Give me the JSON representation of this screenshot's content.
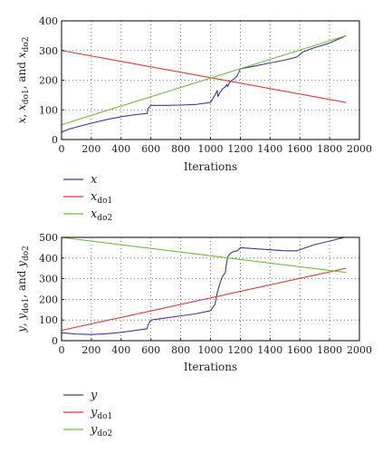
{
  "chart_data": [
    {
      "type": "line",
      "xlabel": "Iterations",
      "ylabel": "x, x_do1, and x_do2",
      "xlim": [
        0,
        2000
      ],
      "ylim": [
        0,
        400
      ],
      "xticks": [
        0,
        200,
        400,
        600,
        800,
        1000,
        1200,
        1400,
        1600,
        1800,
        2000
      ],
      "yticks": [
        0,
        100,
        200,
        300,
        400
      ],
      "grid": true,
      "legend_position": "below",
      "series": [
        {
          "name": "x",
          "sub": "",
          "color": "#3a3a9e",
          "points": [
            [
              0,
              25
            ],
            [
              50,
              35
            ],
            [
              100,
              42
            ],
            [
              200,
              55
            ],
            [
              300,
              67
            ],
            [
              400,
              77
            ],
            [
              500,
              84
            ],
            [
              575,
              88
            ],
            [
              580,
              105
            ],
            [
              600,
              115
            ],
            [
              700,
              115
            ],
            [
              800,
              116
            ],
            [
              900,
              118
            ],
            [
              1000,
              125
            ],
            [
              1030,
              150
            ],
            [
              1045,
              165
            ],
            [
              1050,
              145
            ],
            [
              1060,
              155
            ],
            [
              1080,
              170
            ],
            [
              1100,
              178
            ],
            [
              1110,
              185
            ],
            [
              1115,
              178
            ],
            [
              1125,
              190
            ],
            [
              1140,
              198
            ],
            [
              1160,
              205
            ],
            [
              1180,
              215
            ],
            [
              1200,
              238
            ],
            [
              1300,
              248
            ],
            [
              1400,
              258
            ],
            [
              1500,
              268
            ],
            [
              1580,
              278
            ],
            [
              1620,
              295
            ],
            [
              1700,
              310
            ],
            [
              1800,
              325
            ],
            [
              1910,
              350
            ]
          ]
        },
        {
          "name": "x",
          "sub": "do1",
          "color": "#e8382c",
          "points": [
            [
              0,
              300
            ],
            [
              1910,
              125
            ]
          ]
        },
        {
          "name": "x",
          "sub": "do2",
          "color": "#6cbf3a",
          "points": [
            [
              0,
              50
            ],
            [
              1910,
              350
            ]
          ]
        }
      ]
    },
    {
      "type": "line",
      "xlabel": "Iterations",
      "ylabel": "y, y_do1, and y_do2",
      "xlim": [
        0,
        2000
      ],
      "ylim": [
        0,
        500
      ],
      "xticks": [
        0,
        200,
        400,
        600,
        800,
        1000,
        1200,
        1400,
        1600,
        1800,
        2000
      ],
      "yticks": [
        0,
        100,
        200,
        300,
        400,
        500
      ],
      "grid": true,
      "legend_position": "below",
      "series": [
        {
          "name": "y",
          "sub": "",
          "color": "#3a3a9e",
          "points": [
            [
              0,
              38
            ],
            [
              100,
              32
            ],
            [
              200,
              30
            ],
            [
              300,
              33
            ],
            [
              400,
              40
            ],
            [
              500,
              50
            ],
            [
              575,
              58
            ],
            [
              580,
              75
            ],
            [
              600,
              100
            ],
            [
              700,
              110
            ],
            [
              800,
              120
            ],
            [
              900,
              130
            ],
            [
              1000,
              145
            ],
            [
              1030,
              175
            ],
            [
              1045,
              230
            ],
            [
              1060,
              270
            ],
            [
              1080,
              310
            ],
            [
              1090,
              320
            ],
            [
              1100,
              330
            ],
            [
              1105,
              360
            ],
            [
              1115,
              405
            ],
            [
              1130,
              420
            ],
            [
              1150,
              430
            ],
            [
              1180,
              435
            ],
            [
              1200,
              450
            ],
            [
              1300,
              445
            ],
            [
              1400,
              440
            ],
            [
              1500,
              435
            ],
            [
              1580,
              435
            ],
            [
              1620,
              445
            ],
            [
              1700,
              465
            ],
            [
              1800,
              482
            ],
            [
              1900,
              500
            ],
            [
              1910,
              500
            ]
          ]
        },
        {
          "name": "y",
          "sub": "do1",
          "color": "#e8382c",
          "points": [
            [
              0,
              50
            ],
            [
              1910,
              350
            ]
          ]
        },
        {
          "name": "y",
          "sub": "do2",
          "color": "#6cbf3a",
          "points": [
            [
              0,
              500
            ],
            [
              1910,
              330
            ]
          ]
        }
      ]
    }
  ]
}
